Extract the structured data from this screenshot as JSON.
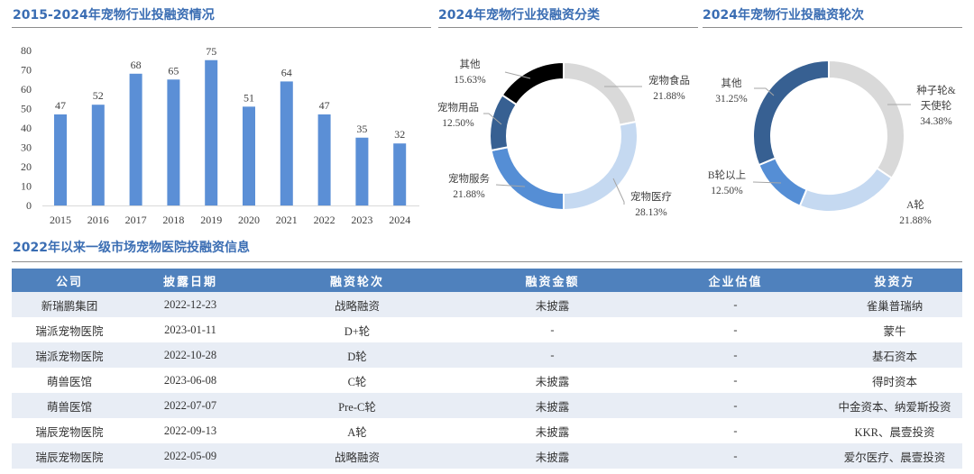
{
  "titles": {
    "bar_chart": "2015-2024年宠物行业投融资情况",
    "donut_category": "2024年宠物行业投融资分类",
    "donut_round": "2024年宠物行业投融资轮次",
    "table": "2022年以来一级市场宠物医院投融资信息"
  },
  "colors": {
    "title": "#3a6db3",
    "bar": "#5b8fd6",
    "table_header": "#4f81bd",
    "table_alt_row": "#e8edf5"
  },
  "chart_data": [
    {
      "type": "bar",
      "title": "2015-2024年宠物行业投融资情况",
      "categories": [
        "2015",
        "2016",
        "2017",
        "2018",
        "2019",
        "2020",
        "2021",
        "2022",
        "2023",
        "2024"
      ],
      "values": [
        47,
        52,
        68,
        65,
        75,
        51,
        64,
        47,
        35,
        32
      ],
      "xlabel": "",
      "ylabel": "",
      "yticks": [
        0,
        10,
        20,
        30,
        40,
        50,
        60,
        70,
        80
      ],
      "ylim": [
        0,
        80
      ],
      "grid": false,
      "data_labels": true
    },
    {
      "type": "pie",
      "donut": true,
      "title": "2024年宠物行业投融资分类",
      "slices": [
        {
          "label": "宠物食品",
          "value": 21.88,
          "pct": "21.88%",
          "color": "#d9d9d9"
        },
        {
          "label": "宠物医疗",
          "value": 28.13,
          "pct": "28.13%",
          "color": "#c5d9f1"
        },
        {
          "label": "宠物服务",
          "value": 21.88,
          "pct": "21.88%",
          "color": "#558ed5"
        },
        {
          "label": "宠物用品",
          "value": 12.5,
          "pct": "12.50%",
          "color": "#376092"
        },
        {
          "label": "其他",
          "value": 15.63,
          "pct": "15.63%",
          "color": "#000000"
        }
      ]
    },
    {
      "type": "pie",
      "donut": true,
      "title": "2024年宠物行业投融资轮次",
      "slices": [
        {
          "label": "种子轮&天使轮",
          "label_lines": [
            "种子轮&",
            "天使轮"
          ],
          "value": 34.38,
          "pct": "34.38%",
          "color": "#d9d9d9"
        },
        {
          "label": "A轮",
          "value": 21.88,
          "pct": "21.88%",
          "color": "#c5d9f1"
        },
        {
          "label": "B轮以上",
          "value": 12.5,
          "pct": "12.50%",
          "color": "#558ed5"
        },
        {
          "label": "其他",
          "value": 31.25,
          "pct": "31.25%",
          "color": "#376092"
        }
      ]
    }
  ],
  "table": {
    "headers": [
      "公司",
      "披露日期",
      "融资轮次",
      "融资金额",
      "企业估值",
      "投资方"
    ],
    "rows": [
      [
        "新瑞鹏集团",
        "2022-12-23",
        "战略融资",
        "未披露",
        "-",
        "雀巢普瑞纳"
      ],
      [
        "瑞派宠物医院",
        "2023-01-11",
        "D+轮",
        "-",
        "-",
        "蒙牛"
      ],
      [
        "瑞派宠物医院",
        "2022-10-28",
        "D轮",
        "-",
        "-",
        "基石资本"
      ],
      [
        "萌兽医馆",
        "2023-06-08",
        "C轮",
        "未披露",
        "-",
        "得时资本"
      ],
      [
        "萌兽医馆",
        "2022-07-07",
        "Pre-C轮",
        "未披露",
        "-",
        "中金资本、纳爱斯投资"
      ],
      [
        "瑞辰宠物医院",
        "2022-09-13",
        "A轮",
        "未披露",
        "-",
        "KKR、晨壹投资"
      ],
      [
        "瑞辰宠物医院",
        "2022-05-09",
        "战略融资",
        "未披露",
        "-",
        "爱尔医疗、晨壹投资"
      ]
    ]
  }
}
